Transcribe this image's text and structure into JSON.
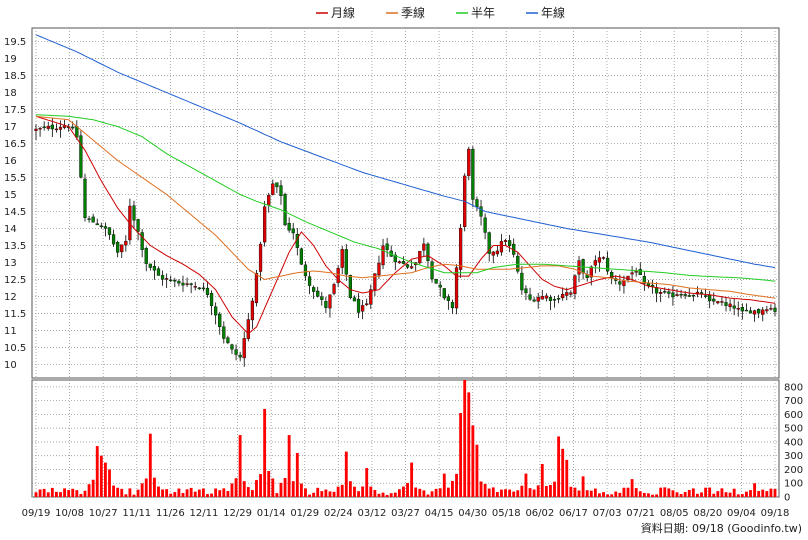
{
  "chart_data": [
    {
      "type": "candlestick",
      "title": "",
      "ylim": [
        9.6,
        19.9
      ],
      "y_ticks": [
        "10",
        "10.5",
        "11",
        "11.5",
        "12",
        "12.5",
        "13",
        "13.5",
        "14",
        "14.5",
        "15",
        "15.5",
        "16",
        "16.5",
        "17",
        "17.5",
        "18",
        "18.5",
        "19",
        "19.5"
      ],
      "x_ticks": [
        "09/19",
        "10/08",
        "10/27",
        "11/11",
        "11/26",
        "12/11",
        "12/29",
        "01/14",
        "01/29",
        "02/24",
        "03/12",
        "03/27",
        "04/15",
        "04/30",
        "05/18",
        "06/02",
        "06/17",
        "07/03",
        "07/21",
        "08/05",
        "08/20",
        "09/04",
        "09/18"
      ],
      "up_color": "#e00000",
      "down_color": "#008000",
      "grid": true,
      "legend_position": "top-center",
      "legend": [
        {
          "name": "月線",
          "color": "#cc0000"
        },
        {
          "name": "季線",
          "color": "#e07020"
        },
        {
          "name": "半年",
          "color": "#22cc22"
        },
        {
          "name": "年線",
          "color": "#2060d0"
        }
      ],
      "close_path": [
        [
          0,
          16.9
        ],
        [
          5,
          17.0
        ],
        [
          8,
          17.05
        ],
        [
          10,
          16.7
        ],
        [
          12,
          14.3
        ],
        [
          14,
          14.2
        ],
        [
          16,
          14.1
        ],
        [
          18,
          13.8
        ],
        [
          20,
          13.3
        ],
        [
          22,
          13.6
        ],
        [
          23,
          14.7
        ],
        [
          25,
          13.9
        ],
        [
          27,
          13.0
        ],
        [
          30,
          12.6
        ],
        [
          33,
          12.45
        ],
        [
          36,
          12.4
        ],
        [
          40,
          12.3
        ],
        [
          42,
          12.1
        ],
        [
          44,
          11.5
        ],
        [
          46,
          10.8
        ],
        [
          48,
          10.4
        ],
        [
          50,
          10.2
        ],
        [
          52,
          11.3
        ],
        [
          54,
          12.6
        ],
        [
          56,
          14.6
        ],
        [
          58,
          15.3
        ],
        [
          60,
          15.0
        ],
        [
          61,
          14.1
        ],
        [
          63,
          13.9
        ],
        [
          65,
          12.9
        ],
        [
          67,
          12.4
        ],
        [
          69,
          12.0
        ],
        [
          71,
          11.7
        ],
        [
          73,
          12.3
        ],
        [
          75,
          13.3
        ],
        [
          77,
          12.0
        ],
        [
          79,
          11.6
        ],
        [
          81,
          11.7
        ],
        [
          83,
          12.6
        ],
        [
          85,
          13.5
        ],
        [
          87,
          13.2
        ],
        [
          89,
          13.0
        ],
        [
          91,
          12.9
        ],
        [
          93,
          13.0
        ],
        [
          95,
          13.6
        ],
        [
          97,
          12.6
        ],
        [
          99,
          12.2
        ],
        [
          100,
          11.9
        ],
        [
          102,
          11.7
        ],
        [
          104,
          14.0
        ],
        [
          105,
          15.5
        ],
        [
          106,
          16.4
        ],
        [
          107,
          14.8
        ],
        [
          109,
          14.3
        ],
        [
          111,
          13.3
        ],
        [
          113,
          13.4
        ],
        [
          115,
          13.7
        ],
        [
          117,
          13.2
        ],
        [
          119,
          12.2
        ],
        [
          121,
          11.9
        ],
        [
          123,
          12.0
        ],
        [
          125,
          12.0
        ],
        [
          127,
          11.9
        ],
        [
          129,
          12.1
        ],
        [
          131,
          12.1
        ],
        [
          133,
          13.0
        ],
        [
          135,
          12.5
        ],
        [
          137,
          13.1
        ],
        [
          139,
          13.1
        ],
        [
          141,
          12.5
        ],
        [
          143,
          12.4
        ],
        [
          145,
          12.6
        ],
        [
          147,
          12.8
        ],
        [
          149,
          12.3
        ],
        [
          151,
          12.2
        ],
        [
          153,
          12.1
        ],
        [
          155,
          12.0
        ],
        [
          157,
          12.1
        ],
        [
          159,
          12.1
        ],
        [
          161,
          12.0
        ],
        [
          163,
          12.1
        ],
        [
          165,
          11.8
        ],
        [
          167,
          11.9
        ],
        [
          169,
          11.7
        ],
        [
          171,
          11.7
        ],
        [
          173,
          11.5
        ],
        [
          175,
          11.6
        ],
        [
          177,
          11.55
        ],
        [
          179,
          11.7
        ],
        [
          181,
          11.6
        ]
      ],
      "moving_averages": [
        {
          "name": "月線",
          "color": "#cc0000",
          "points": [
            [
              0,
              17.3
            ],
            [
              8,
              17.0
            ],
            [
              12,
              16.3
            ],
            [
              16,
              15.4
            ],
            [
              20,
              14.6
            ],
            [
              24,
              14.0
            ],
            [
              28,
              13.5
            ],
            [
              32,
              13.2
            ],
            [
              36,
              12.95
            ],
            [
              40,
              12.65
            ],
            [
              44,
              12.2
            ],
            [
              48,
              11.4
            ],
            [
              52,
              10.9
            ],
            [
              54,
              11.1
            ],
            [
              58,
              12.2
            ],
            [
              62,
              13.3
            ],
            [
              65,
              13.9
            ],
            [
              68,
              13.5
            ],
            [
              71,
              12.9
            ],
            [
              74,
              12.5
            ],
            [
              77,
              12.2
            ],
            [
              80,
              12.1
            ],
            [
              84,
              12.2
            ],
            [
              88,
              12.7
            ],
            [
              92,
              13.1
            ],
            [
              96,
              13.2
            ],
            [
              100,
              12.9
            ],
            [
              103,
              12.6
            ],
            [
              106,
              12.6
            ],
            [
              109,
              13.1
            ],
            [
              112,
              13.5
            ],
            [
              115,
              13.5
            ],
            [
              118,
              13.3
            ],
            [
              121,
              12.9
            ],
            [
              124,
              12.5
            ],
            [
              127,
              12.3
            ],
            [
              130,
              12.2
            ],
            [
              134,
              12.35
            ],
            [
              138,
              12.5
            ],
            [
              142,
              12.6
            ],
            [
              146,
              12.5
            ],
            [
              150,
              12.3
            ],
            [
              155,
              12.2
            ],
            [
              160,
              12.1
            ],
            [
              165,
              12.05
            ],
            [
              170,
              11.95
            ],
            [
              175,
              11.9
            ],
            [
              181,
              11.8
            ]
          ]
        },
        {
          "name": "季線",
          "color": "#e07020",
          "points": [
            [
              0,
              17.3
            ],
            [
              8,
              17.2
            ],
            [
              14,
              16.6
            ],
            [
              20,
              16.0
            ],
            [
              26,
              15.5
            ],
            [
              32,
              15.0
            ],
            [
              38,
              14.4
            ],
            [
              44,
              13.8
            ],
            [
              48,
              13.3
            ],
            [
              52,
              12.8
            ],
            [
              56,
              12.5
            ],
            [
              60,
              12.6
            ],
            [
              64,
              12.7
            ],
            [
              68,
              12.75
            ],
            [
              72,
              12.7
            ],
            [
              76,
              12.6
            ],
            [
              80,
              12.55
            ],
            [
              84,
              12.6
            ],
            [
              88,
              12.65
            ],
            [
              92,
              12.7
            ],
            [
              96,
              12.85
            ],
            [
              100,
              12.95
            ],
            [
              104,
              12.9
            ],
            [
              108,
              12.8
            ],
            [
              112,
              12.8
            ],
            [
              116,
              12.8
            ],
            [
              120,
              12.85
            ],
            [
              124,
              12.9
            ],
            [
              128,
              12.9
            ],
            [
              132,
              12.8
            ],
            [
              136,
              12.6
            ],
            [
              140,
              12.55
            ],
            [
              145,
              12.45
            ],
            [
              150,
              12.4
            ],
            [
              155,
              12.35
            ],
            [
              160,
              12.25
            ],
            [
              165,
              12.2
            ],
            [
              170,
              12.15
            ],
            [
              175,
              12.05
            ],
            [
              181,
              11.95
            ]
          ]
        },
        {
          "name": "半年",
          "color": "#22cc22",
          "points": [
            [
              0,
              17.35
            ],
            [
              8,
              17.3
            ],
            [
              14,
              17.2
            ],
            [
              20,
              17.0
            ],
            [
              26,
              16.7
            ],
            [
              32,
              16.2
            ],
            [
              38,
              15.8
            ],
            [
              44,
              15.4
            ],
            [
              50,
              15.0
            ],
            [
              54,
              14.8
            ],
            [
              60,
              14.55
            ],
            [
              66,
              14.2
            ],
            [
              72,
              13.9
            ],
            [
              78,
              13.6
            ],
            [
              84,
              13.4
            ],
            [
              88,
              13.2
            ],
            [
              92,
              13.0
            ],
            [
              96,
              12.85
            ],
            [
              100,
              12.7
            ],
            [
              104,
              12.7
            ],
            [
              108,
              12.7
            ],
            [
              112,
              12.85
            ],
            [
              118,
              12.95
            ],
            [
              124,
              12.95
            ],
            [
              130,
              12.9
            ],
            [
              136,
              12.85
            ],
            [
              142,
              12.8
            ],
            [
              148,
              12.75
            ],
            [
              154,
              12.7
            ],
            [
              160,
              12.62
            ],
            [
              166,
              12.58
            ],
            [
              172,
              12.55
            ],
            [
              177,
              12.5
            ],
            [
              181,
              12.45
            ]
          ]
        },
        {
          "name": "年線",
          "color": "#2060d0",
          "points": [
            [
              0,
              19.7
            ],
            [
              10,
              19.2
            ],
            [
              20,
              18.6
            ],
            [
              30,
              18.1
            ],
            [
              40,
              17.6
            ],
            [
              50,
              17.1
            ],
            [
              60,
              16.55
            ],
            [
              70,
              16.1
            ],
            [
              80,
              15.65
            ],
            [
              90,
              15.3
            ],
            [
              100,
              14.95
            ],
            [
              105,
              14.8
            ],
            [
              110,
              14.5
            ],
            [
              120,
              14.25
            ],
            [
              130,
              14.0
            ],
            [
              140,
              13.8
            ],
            [
              150,
              13.6
            ],
            [
              160,
              13.35
            ],
            [
              170,
              13.1
            ],
            [
              176,
              12.95
            ],
            [
              181,
              12.85
            ]
          ]
        }
      ]
    },
    {
      "type": "bar",
      "title": "",
      "ylim": [
        0,
        850
      ],
      "y_ticks": [
        "0",
        "100",
        "200",
        "300",
        "400",
        "500",
        "600",
        "700",
        "800"
      ],
      "bar_color": "#ff0000",
      "note": "",
      "volume_peaks": [
        [
          15,
          370
        ],
        [
          16,
          300
        ],
        [
          17,
          250
        ],
        [
          18,
          200
        ],
        [
          28,
          460
        ],
        [
          50,
          450
        ],
        [
          56,
          640
        ],
        [
          62,
          450
        ],
        [
          64,
          320
        ],
        [
          76,
          330
        ],
        [
          81,
          210
        ],
        [
          92,
          250
        ],
        [
          100,
          170
        ],
        [
          104,
          610
        ],
        [
          105,
          850
        ],
        [
          106,
          760
        ],
        [
          107,
          520
        ],
        [
          108,
          380
        ],
        [
          120,
          170
        ],
        [
          124,
          240
        ],
        [
          128,
          440
        ],
        [
          129,
          350
        ],
        [
          130,
          270
        ],
        [
          134,
          150
        ],
        [
          146,
          130
        ],
        [
          176,
          100
        ]
      ]
    }
  ],
  "source": "資料日期: 09/18  (Goodinfo.tw)"
}
